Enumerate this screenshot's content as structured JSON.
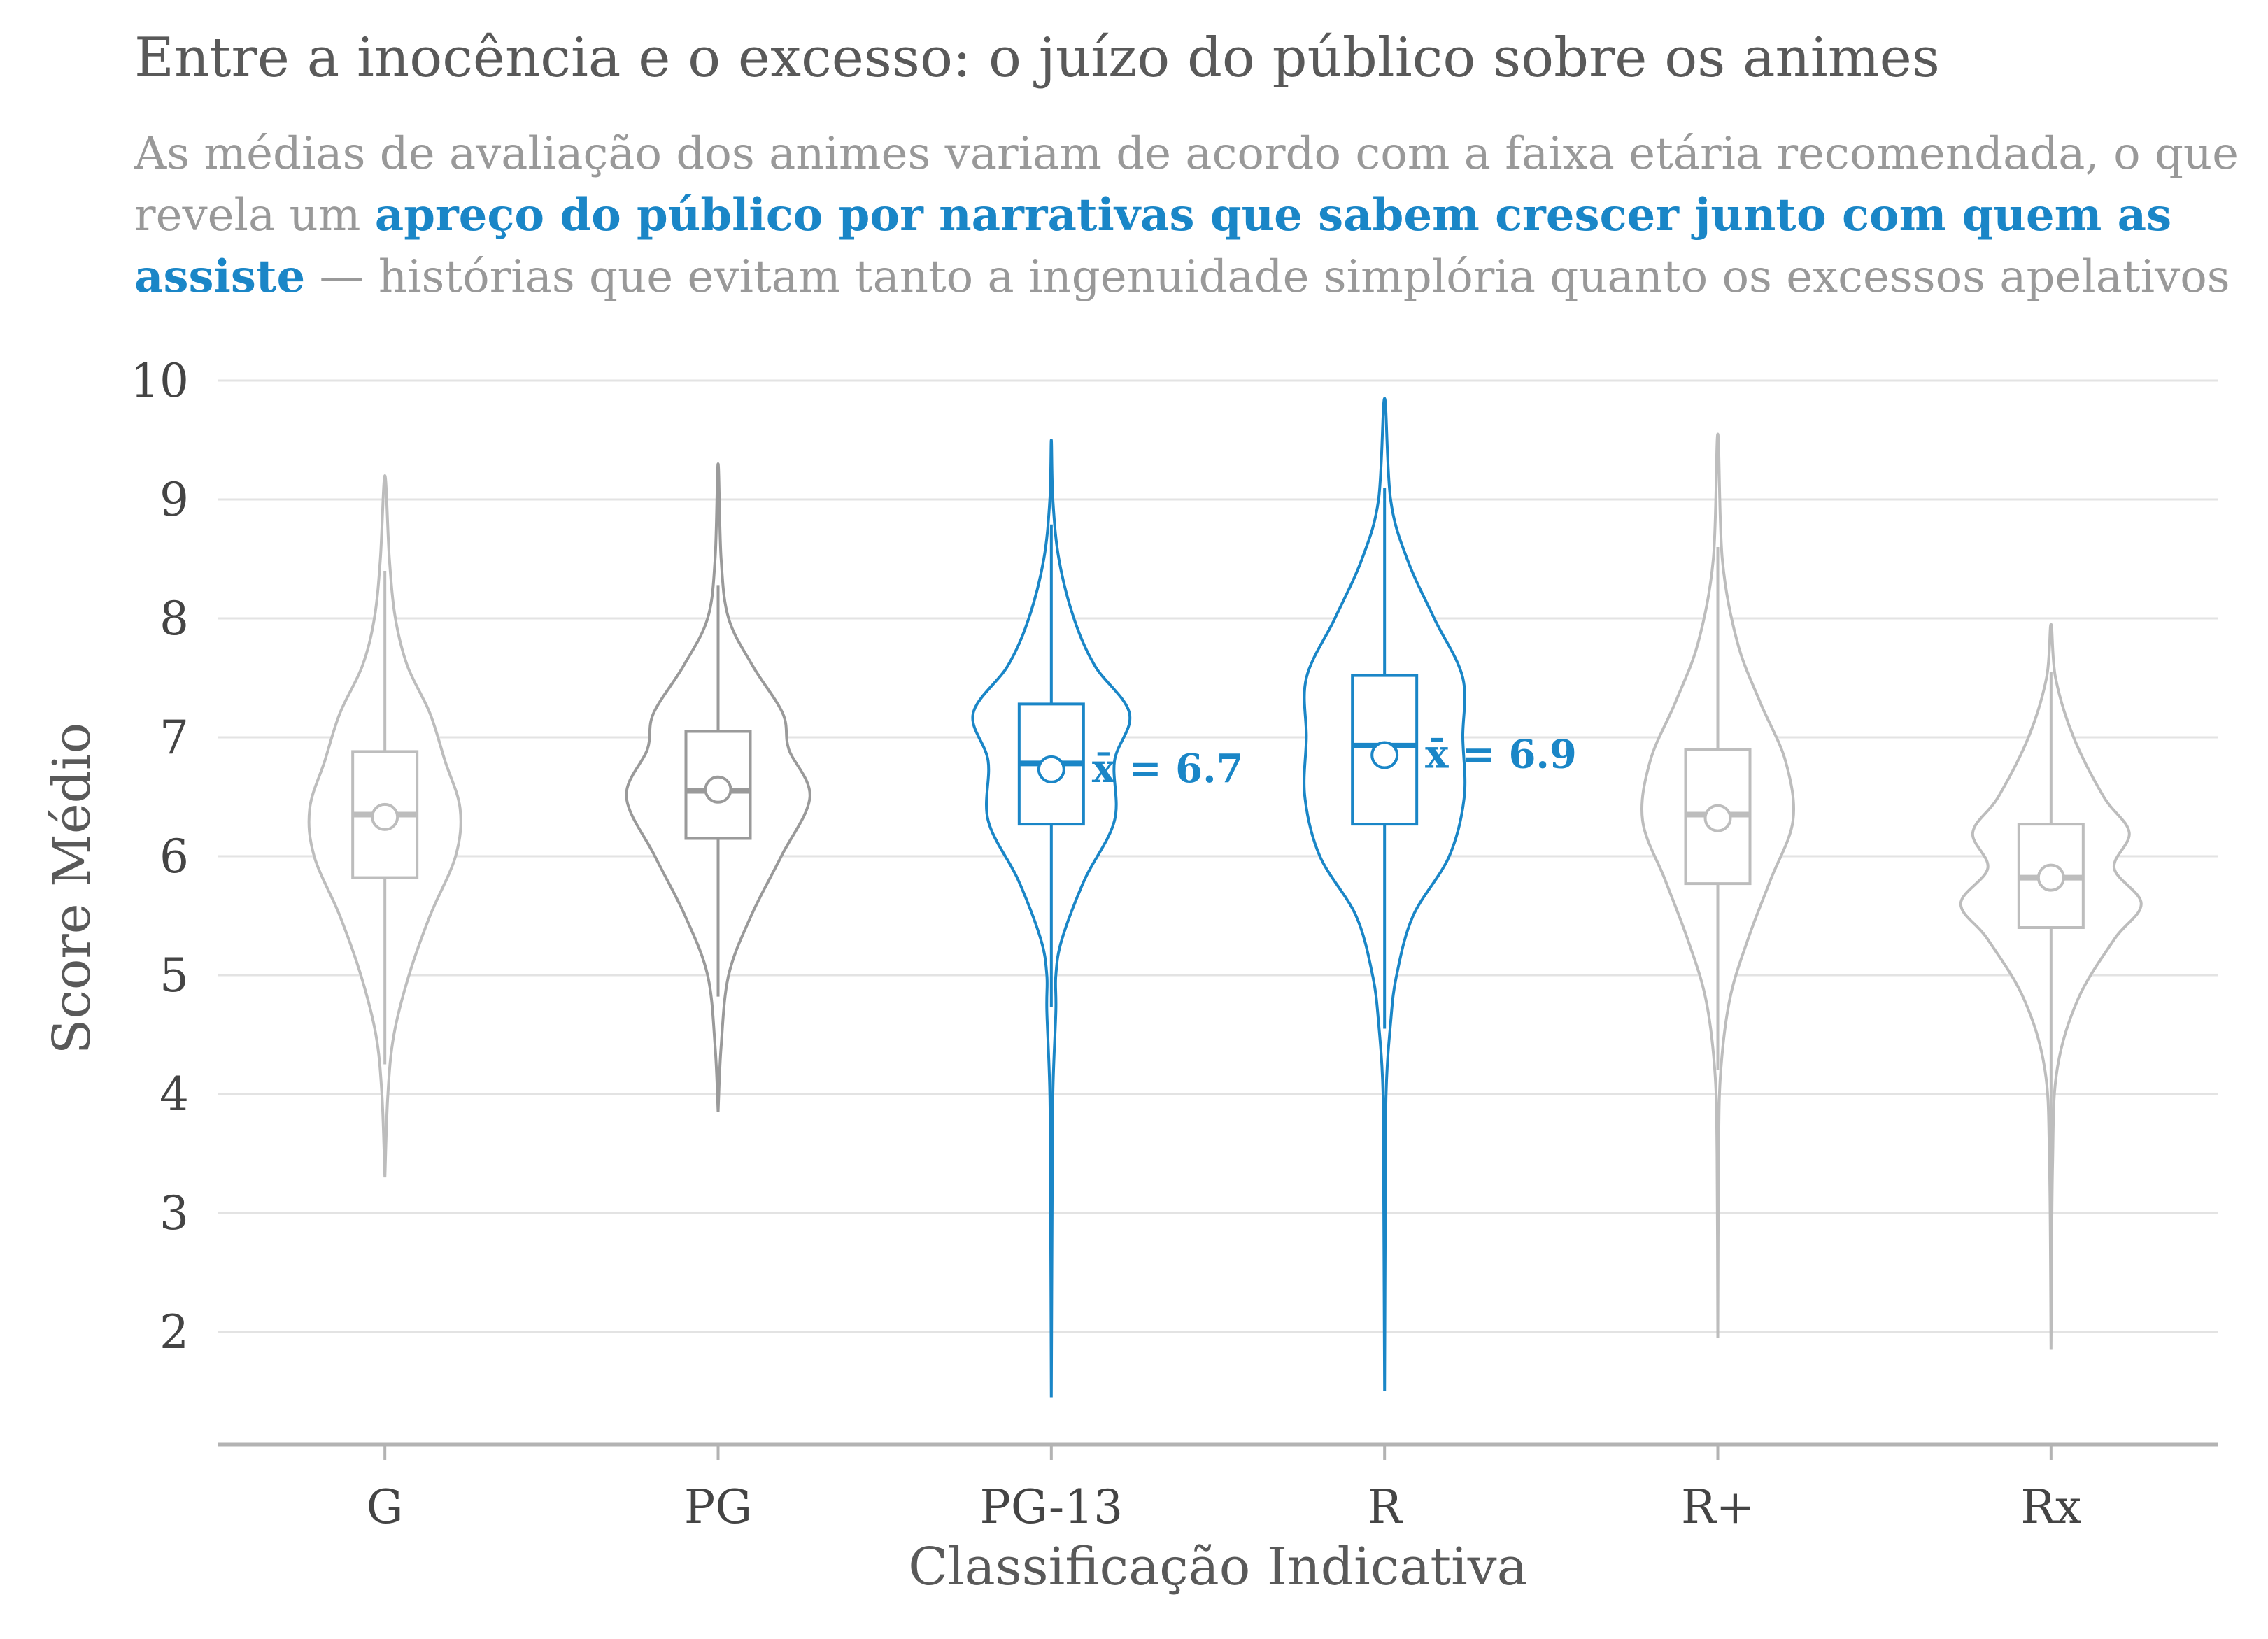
{
  "header": {
    "title": "Entre a inocência e o excesso: o juízo do público sobre os animes",
    "subtitle_part1": "As médias de avaliação dos animes variam de acordo com a faixa etária recomendada, o que revela um ",
    "subtitle_highlight": "apreço do público por narrativas que sabem crescer junto com quem as assiste",
    "subtitle_part2": " — histórias que evitam tanto a ingenuidade simplória quanto os excessos apelativos"
  },
  "colors": {
    "highlight": "#1a86c7",
    "muted": "#bdbdbd",
    "muted_dark": "#9a9a9a",
    "grid": "#e3e3e3",
    "axis": "#b3b3b3"
  },
  "chart_data": {
    "type": "violin",
    "xlabel": "Classificação Indicativa",
    "ylabel": "Score Médio",
    "ylim": [
      1.1,
      10.2
    ],
    "yticks": [
      2,
      3,
      4,
      5,
      6,
      7,
      8,
      9,
      10
    ],
    "grid": true,
    "categories": [
      "G",
      "PG",
      "PG-13",
      "R",
      "R+",
      "Rx"
    ],
    "series": [
      {
        "category": "G",
        "min": 3.3,
        "max": 9.2,
        "q1": 5.82,
        "median": 6.35,
        "q3": 6.88,
        "whisker_low": 4.25,
        "whisker_high": 8.4,
        "mean": 6.33,
        "highlight": false,
        "density": [
          [
            3.3,
            0
          ],
          [
            4.0,
            0.02
          ],
          [
            4.5,
            0.06
          ],
          [
            5.0,
            0.16
          ],
          [
            5.5,
            0.3
          ],
          [
            6.0,
            0.47
          ],
          [
            6.4,
            0.5
          ],
          [
            6.8,
            0.4
          ],
          [
            7.2,
            0.3
          ],
          [
            7.6,
            0.15
          ],
          [
            8.0,
            0.07
          ],
          [
            8.5,
            0.03
          ],
          [
            9.2,
            0
          ]
        ]
      },
      {
        "category": "PG",
        "min": 3.85,
        "max": 9.3,
        "q1": 6.15,
        "median": 6.55,
        "q3": 7.05,
        "whisker_low": 4.82,
        "whisker_high": 8.28,
        "mean": 6.56,
        "highlight": false,
        "density": [
          [
            3.85,
            0
          ],
          [
            4.4,
            0.02
          ],
          [
            5.0,
            0.07
          ],
          [
            5.5,
            0.22
          ],
          [
            6.0,
            0.42
          ],
          [
            6.5,
            0.61
          ],
          [
            6.9,
            0.47
          ],
          [
            7.2,
            0.43
          ],
          [
            7.6,
            0.23
          ],
          [
            8.0,
            0.07
          ],
          [
            8.5,
            0.02
          ],
          [
            9.3,
            0
          ]
        ]
      },
      {
        "category": "PG-13",
        "min": 1.45,
        "max": 9.5,
        "q1": 6.27,
        "median": 6.78,
        "q3": 7.28,
        "whisker_low": 4.73,
        "whisker_high": 8.79,
        "mean": 6.73,
        "mean_label": "x̄ = 6.7",
        "highlight": true,
        "density": [
          [
            1.45,
            0
          ],
          [
            3.0,
            0.005
          ],
          [
            4.0,
            0.01
          ],
          [
            4.7,
            0.03
          ],
          [
            5.0,
            0.03
          ],
          [
            5.3,
            0.07
          ],
          [
            5.8,
            0.22
          ],
          [
            6.3,
            0.42
          ],
          [
            6.8,
            0.42
          ],
          [
            7.2,
            0.52
          ],
          [
            7.6,
            0.29
          ],
          [
            8.0,
            0.15
          ],
          [
            8.5,
            0.05
          ],
          [
            9.0,
            0.01
          ],
          [
            9.5,
            0
          ]
        ]
      },
      {
        "category": "R",
        "min": 1.5,
        "max": 9.85,
        "q1": 6.27,
        "median": 6.93,
        "q3": 7.52,
        "whisker_low": 4.55,
        "whisker_high": 9.1,
        "mean": 6.85,
        "mean_label": "x̄ = 6.9",
        "highlight": true,
        "density": [
          [
            1.5,
            0
          ],
          [
            3.0,
            0.005
          ],
          [
            4.0,
            0.01
          ],
          [
            4.6,
            0.04
          ],
          [
            5.0,
            0.08
          ],
          [
            5.5,
            0.19
          ],
          [
            6.0,
            0.43
          ],
          [
            6.5,
            0.53
          ],
          [
            7.0,
            0.52
          ],
          [
            7.5,
            0.52
          ],
          [
            8.0,
            0.33
          ],
          [
            8.5,
            0.15
          ],
          [
            9.0,
            0.04
          ],
          [
            9.85,
            0
          ]
        ]
      },
      {
        "category": "R+",
        "min": 1.95,
        "max": 9.55,
        "q1": 5.77,
        "median": 6.35,
        "q3": 6.9,
        "whisker_low": 4.2,
        "whisker_high": 8.6,
        "mean": 6.32,
        "highlight": false,
        "density": [
          [
            1.95,
            0
          ],
          [
            3.5,
            0.005
          ],
          [
            4.2,
            0.02
          ],
          [
            4.8,
            0.08
          ],
          [
            5.3,
            0.2
          ],
          [
            5.8,
            0.35
          ],
          [
            6.3,
            0.5
          ],
          [
            6.8,
            0.45
          ],
          [
            7.3,
            0.28
          ],
          [
            7.8,
            0.13
          ],
          [
            8.5,
            0.03
          ],
          [
            9.55,
            0
          ]
        ]
      },
      {
        "category": "Rx",
        "min": 1.85,
        "max": 7.95,
        "q1": 5.4,
        "median": 5.82,
        "q3": 6.27,
        "whisker_low": 3.35,
        "whisker_high": 7.55,
        "mean": 5.82,
        "highlight": false,
        "density": [
          [
            1.85,
            0
          ],
          [
            3.4,
            0.01
          ],
          [
            4.2,
            0.04
          ],
          [
            4.8,
            0.18
          ],
          [
            5.3,
            0.42
          ],
          [
            5.6,
            0.6
          ],
          [
            5.9,
            0.42
          ],
          [
            6.2,
            0.52
          ],
          [
            6.5,
            0.35
          ],
          [
            7.0,
            0.15
          ],
          [
            7.5,
            0.03
          ],
          [
            7.95,
            0
          ]
        ]
      }
    ]
  }
}
